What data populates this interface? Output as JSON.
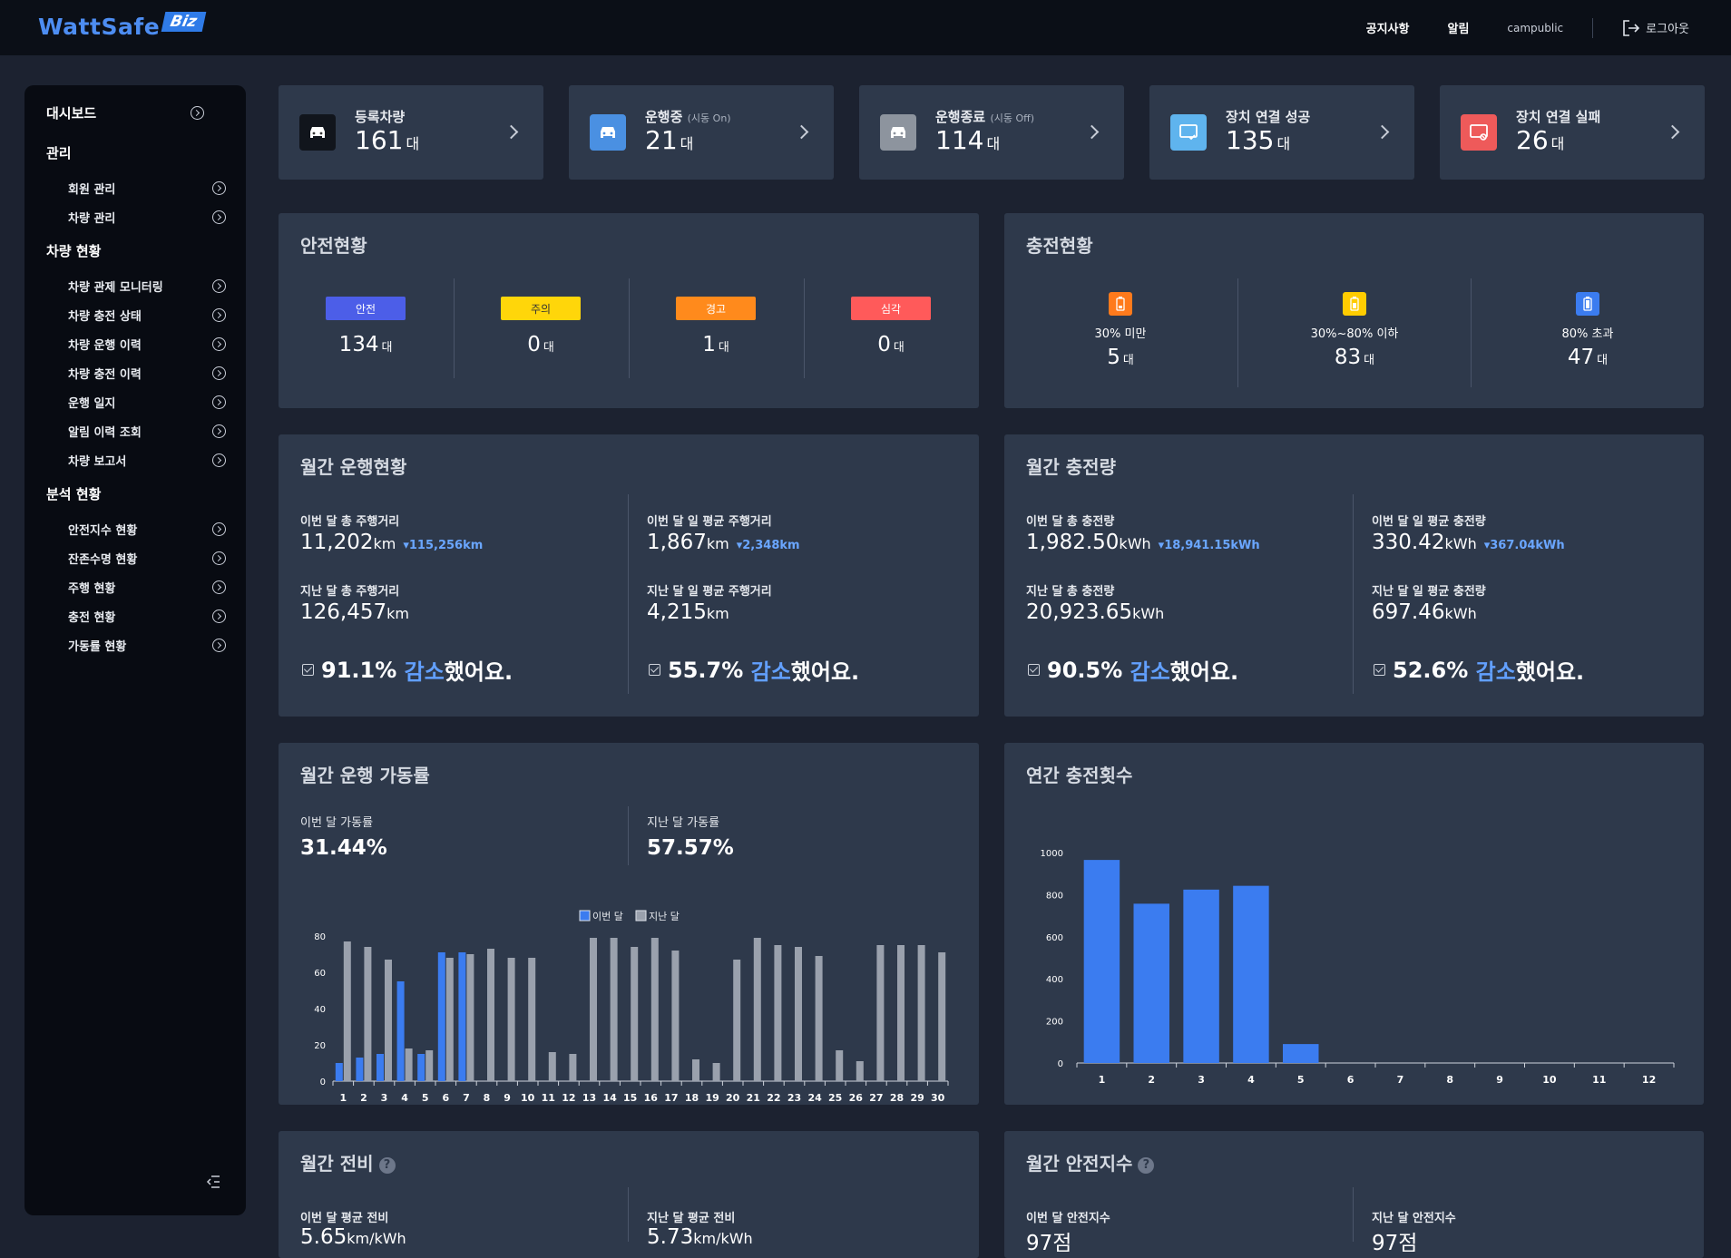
{
  "header": {
    "logo_text": "WattSafe",
    "logo_badge": "Biz",
    "nav": [
      "공지사항",
      "알림"
    ],
    "user": "campublic",
    "logout": "로그아웃"
  },
  "sidebar": {
    "dashboard": "대시보드",
    "groups": [
      {
        "title": "관리",
        "items": [
          "회원 관리",
          "차량 관리"
        ]
      },
      {
        "title": "차량 현황",
        "items": [
          "차량 관제 모니터링",
          "차량 충전 상태",
          "차량 운행 이력",
          "차량 충전 이력",
          "운행 일지",
          "알림 이력 조회",
          "차량 보고서"
        ]
      },
      {
        "title": "분석 현황",
        "items": [
          "안전지수 현황",
          "잔존수명 현황",
          "주행 현황",
          "충전 현황",
          "가동률 현황"
        ]
      }
    ]
  },
  "stats": [
    {
      "label": "등록차량",
      "sub": "",
      "value": "161",
      "unit": "대",
      "color": "#11151c",
      "icon": "car-icon"
    },
    {
      "label": "운행중",
      "sub": "(시동 On)",
      "value": "21",
      "unit": "대",
      "color": "#4a90e2",
      "icon": "car-icon"
    },
    {
      "label": "운행종료",
      "sub": "(시동 Off)",
      "value": "114",
      "unit": "대",
      "color": "#8d949e",
      "icon": "car-icon"
    },
    {
      "label": "장치 연결 성공",
      "sub": "",
      "value": "135",
      "unit": "대",
      "color": "#5fb4ee",
      "icon": "device-ok-icon"
    },
    {
      "label": "장치 연결 실패",
      "sub": "",
      "value": "26",
      "unit": "대",
      "color": "#ee5a5a",
      "icon": "device-fail-icon"
    }
  ],
  "safety": {
    "title": "안전현황",
    "levels": [
      {
        "label": "안전",
        "value": "134",
        "unit": "대",
        "color": "#4c5ee8",
        "text_color": "#ffffff"
      },
      {
        "label": "주의",
        "value": "0",
        "unit": "대",
        "color": "#ffd60a",
        "text_color": "#333333"
      },
      {
        "label": "경고",
        "value": "1",
        "unit": "대",
        "color": "#ff8a1c",
        "text_color": "#ffffff"
      },
      {
        "label": "심각",
        "value": "0",
        "unit": "대",
        "color": "#ff5a5a",
        "text_color": "#ffffff"
      }
    ]
  },
  "charge_status": {
    "title": "충전현황",
    "levels": [
      {
        "label": "30% 미만",
        "value": "5",
        "unit": "대",
        "color": "#ff7a1c",
        "level": 0.25
      },
      {
        "label": "30%~80% 이하",
        "value": "83",
        "unit": "대",
        "color": "#ffcc00",
        "level": 0.55
      },
      {
        "label": "80% 초과",
        "value": "47",
        "unit": "대",
        "color": "#3b7cf0",
        "level": 0.9
      }
    ]
  },
  "monthly_driving": {
    "title": "월간 운행현황",
    "cols": [
      {
        "cur_label": "이번 달 총 주행거리",
        "cur_value": "11,202",
        "cur_unit": "km",
        "cur_delta": "115,256km",
        "prev_label": "지난 달 총 주행거리",
        "prev_value": "126,457",
        "prev_unit": "km",
        "pct": "91.1%",
        "word": "감소",
        "tail": "했어요."
      },
      {
        "cur_label": "이번 달 일 평균 주행거리",
        "cur_value": "1,867",
        "cur_unit": "km",
        "cur_delta": "2,348km",
        "prev_label": "지난 달 일 평균 주행거리",
        "prev_value": "4,215",
        "prev_unit": "km",
        "pct": "55.7%",
        "word": "감소",
        "tail": "했어요."
      }
    ]
  },
  "monthly_charge": {
    "title": "월간 충전량",
    "cols": [
      {
        "cur_label": "이번 달 총 충전량",
        "cur_value": "1,982.50",
        "cur_unit": "kWh",
        "cur_delta": "18,941.15kWh",
        "prev_label": "지난 달 총 충전량",
        "prev_value": "20,923.65",
        "prev_unit": "kWh",
        "pct": "90.5%",
        "word": "감소",
        "tail": "했어요."
      },
      {
        "cur_label": "이번 달 일 평균 충전량",
        "cur_value": "330.42",
        "cur_unit": "kWh",
        "cur_delta": "367.04kWh",
        "prev_label": "지난 달 일 평균 충전량",
        "prev_value": "697.46",
        "prev_unit": "kWh",
        "pct": "52.6%",
        "word": "감소",
        "tail": "했어요."
      }
    ]
  },
  "utilization": {
    "title": "월간 운행 가동률",
    "cur_label": "이번 달 가동률",
    "cur_value": "31.44%",
    "prev_label": "지난 달 가동률",
    "prev_value": "57.57%"
  },
  "annual_charge": {
    "title": "연간 충전횟수"
  },
  "efficiency": {
    "title": "월간 전비",
    "cur_label": "이번 달 평균 전비",
    "cur_value": "5.65",
    "cur_unit": "km/kWh",
    "prev_label": "지난 달 평균 전비",
    "prev_value": "5.73",
    "prev_unit": "km/kWh"
  },
  "safety_index": {
    "title": "월간 안전지수",
    "cur_label": "이번 달 안전지수",
    "cur_value": "97점",
    "prev_label": "지난 달 안전지수",
    "prev_value": "97점"
  },
  "chart_data": [
    {
      "type": "bar",
      "legend": [
        "이번 달",
        "지난 달"
      ],
      "legend_position": "top-center",
      "categories": [
        "1",
        "2",
        "3",
        "4",
        "5",
        "6",
        "7",
        "8",
        "9",
        "10",
        "11",
        "12",
        "13",
        "14",
        "15",
        "16",
        "17",
        "18",
        "19",
        "20",
        "21",
        "22",
        "23",
        "24",
        "25",
        "26",
        "27",
        "28",
        "29",
        "30"
      ],
      "series": [
        {
          "name": "이번 달",
          "color": "#3b7cf0",
          "values": [
            10,
            13,
            15,
            55,
            15,
            71,
            71,
            0,
            0,
            0,
            0,
            0,
            0,
            0,
            0,
            0,
            0,
            0,
            0,
            0,
            0,
            0,
            0,
            0,
            0,
            0,
            0,
            0,
            0,
            0
          ]
        },
        {
          "name": "지난 달",
          "color": "#9aa1ad",
          "values": [
            77,
            74,
            67,
            18,
            17,
            68,
            70,
            73,
            68,
            68,
            16,
            15,
            79,
            79,
            74,
            79,
            72,
            12,
            10,
            67,
            79,
            75,
            74,
            69,
            17,
            11,
            75,
            75,
            75,
            71
          ]
        }
      ],
      "ylim": [
        0,
        80
      ],
      "yticks": [
        0,
        20,
        40,
        60,
        80
      ]
    },
    {
      "type": "bar",
      "categories": [
        "1",
        "2",
        "3",
        "4",
        "5",
        "6",
        "7",
        "8",
        "9",
        "10",
        "11",
        "12"
      ],
      "values": [
        965,
        757,
        824,
        842,
        90,
        0,
        0,
        0,
        0,
        0,
        0,
        0
      ],
      "color": "#3b7cf0",
      "ylim": [
        0,
        1000
      ],
      "yticks": [
        0,
        200,
        400,
        600,
        800,
        1000
      ]
    }
  ]
}
